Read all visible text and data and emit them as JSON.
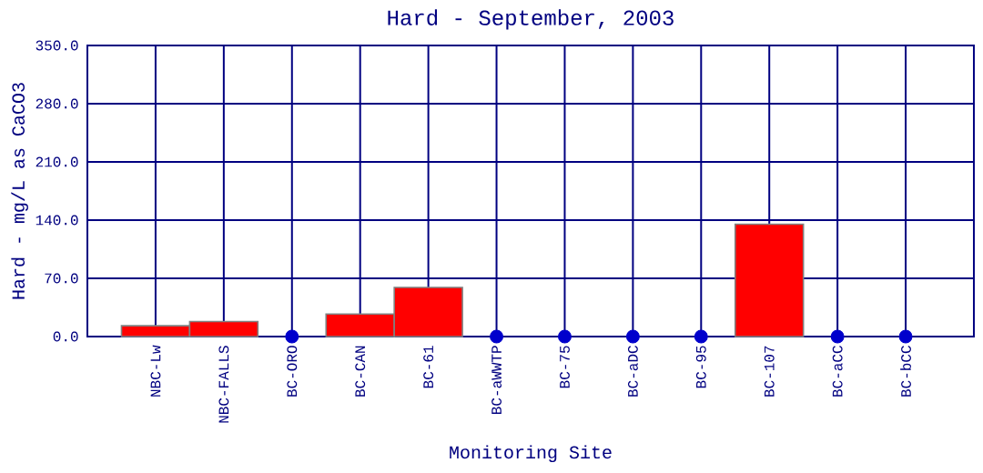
{
  "chart_data": {
    "type": "bar",
    "title": "Hard - September, 2003",
    "xlabel": "Monitoring Site",
    "ylabel": "Hard - mg/L as CaCO3",
    "categories": [
      "NBC-Lw",
      "NBC-FALLS",
      "BC-ORO",
      "BC-CAN",
      "BC-61",
      "BC-aWWTP",
      "BC-75",
      "BC-aDC",
      "BC-95",
      "BC-107",
      "BC-aCC",
      "BC-bCC"
    ],
    "series": [
      {
        "color": "#ff0000",
        "values": [
          13,
          18,
          null,
          27,
          59,
          null,
          null,
          null,
          null,
          135,
          null,
          null
        ]
      },
      {
        "type": "scatter",
        "color": "#0000cc",
        "marker": "circle",
        "values": [
          null,
          null,
          0,
          null,
          null,
          0,
          0,
          0,
          0,
          null,
          0,
          0
        ]
      }
    ],
    "ylim": [
      0,
      350
    ],
    "yticks": [
      {
        "value": 0,
        "label": "0.0"
      },
      {
        "value": 70,
        "label": "70.0"
      },
      {
        "value": 140,
        "label": "140.0"
      },
      {
        "value": 210,
        "label": "210.0"
      },
      {
        "value": 280,
        "label": "280.0"
      },
      {
        "value": 350,
        "label": "350.0"
      }
    ],
    "grid": true
  }
}
